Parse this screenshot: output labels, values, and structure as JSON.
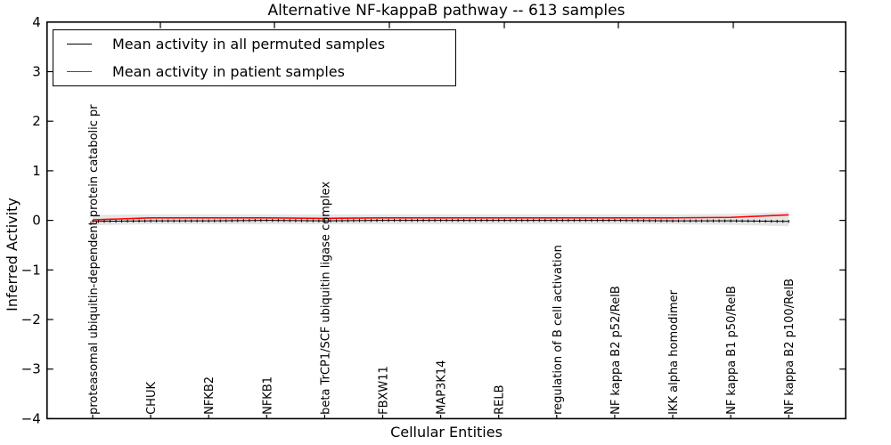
{
  "figure": {
    "title": "Alternative NF-kappaB pathway -- 613 samples",
    "xlabel": "Cellular Entities",
    "ylabel": "Inferred Activity"
  },
  "legend": {
    "items": [
      {
        "label": "Mean activity in all permuted samples",
        "color": "#000000"
      },
      {
        "label": "Mean activity in patient samples",
        "color": "#ff0000"
      }
    ]
  },
  "chart_data": {
    "type": "line",
    "title": "Alternative NF-kappaB pathway -- 613 samples",
    "xlabel": "Cellular Entities",
    "ylabel": "Inferred Activity",
    "ylim": [
      -4,
      4
    ],
    "ytick_labels": [
      "4",
      "3",
      "2",
      "1",
      "0",
      "−1",
      "−2",
      "−3",
      "−4"
    ],
    "ytick_values": [
      4,
      3,
      2,
      1,
      0,
      -1,
      -2,
      -3,
      -4
    ],
    "grid": false,
    "legend_position": "upper left",
    "categories": [
      "proteasomal ubiquitin-dependent protein catabolic pr",
      "CHUK",
      "NFKB2",
      "NFKB1",
      "beta TrCP1/SCF ubiquitin ligase complex",
      "FBXW11",
      "MAP3K14",
      "RELB",
      "regulation of B cell activation",
      "NF kappa B2 p52/RelB",
      "IKK alpha homodimer",
      "NF kappa B1 p50/RelB",
      "NF kappa B2 p100/RelB"
    ],
    "series": [
      {
        "name": "Mean activity in all permuted samples",
        "color": "#000000",
        "style": "solid-with-tick-markers",
        "values": [
          -0.02,
          -0.01,
          -0.01,
          0.0,
          -0.01,
          0.0,
          0.0,
          0.0,
          0.0,
          0.0,
          -0.01,
          -0.01,
          -0.02
        ]
      },
      {
        "name": "Mean activity in patient samples",
        "color": "#ff0000",
        "style": "solid",
        "values": [
          0.01,
          0.05,
          0.05,
          0.05,
          0.04,
          0.05,
          0.05,
          0.05,
          0.05,
          0.05,
          0.05,
          0.06,
          0.11
        ]
      }
    ],
    "band": {
      "name": "permuted-samples-spread-band",
      "color": "#e5e5e5",
      "upper": [
        0.11,
        0.12,
        0.12,
        0.12,
        0.12,
        0.12,
        0.12,
        0.12,
        0.12,
        0.12,
        0.12,
        0.13,
        0.17
      ],
      "lower": [
        -0.1,
        -0.08,
        -0.08,
        -0.08,
        -0.08,
        -0.08,
        -0.08,
        -0.08,
        -0.08,
        -0.08,
        -0.08,
        -0.09,
        -0.12
      ]
    }
  }
}
